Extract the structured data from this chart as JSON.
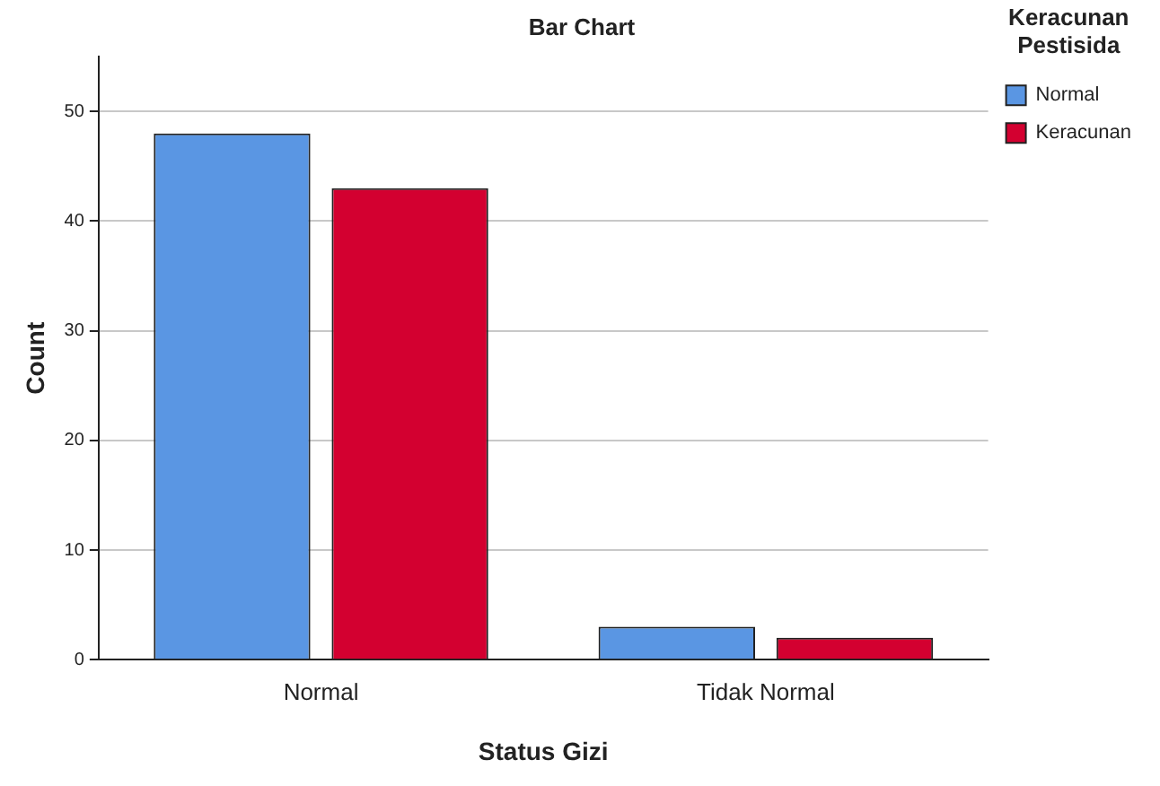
{
  "chart_data": {
    "type": "bar",
    "title": "Bar Chart",
    "xlabel": "Status Gizi",
    "ylabel": "Count",
    "legend_title": "Keracunan Pestisida",
    "categories": [
      "Normal",
      "Tidak Normal"
    ],
    "series": [
      {
        "name": "Normal",
        "color": "#5a96e3",
        "values": [
          48,
          3
        ]
      },
      {
        "name": "Keracunan",
        "color": "#d30030",
        "values": [
          43,
          2
        ]
      }
    ],
    "ylim": [
      0,
      55
    ],
    "yticks": [
      0,
      10,
      20,
      30,
      40,
      50
    ],
    "grid": "y",
    "legend": "top right"
  }
}
